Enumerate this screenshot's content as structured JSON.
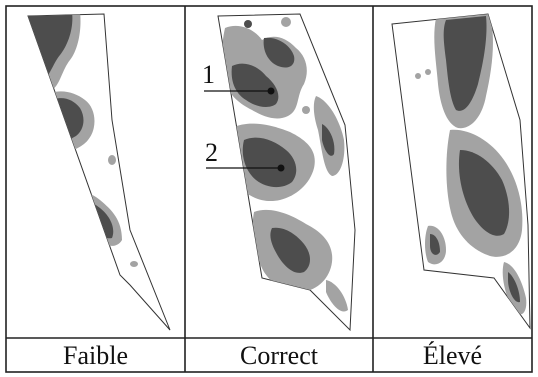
{
  "panels": [
    {
      "caption": "Faible"
    },
    {
      "caption": "Correct"
    },
    {
      "caption": "Élevé"
    }
  ],
  "markers": [
    {
      "label": "1"
    },
    {
      "label": "2"
    }
  ],
  "colors": {
    "dark_zone": "#4d4d4d",
    "mid_zone": "#a3a3a3",
    "background": "#ffffff",
    "outline": "#333333"
  }
}
